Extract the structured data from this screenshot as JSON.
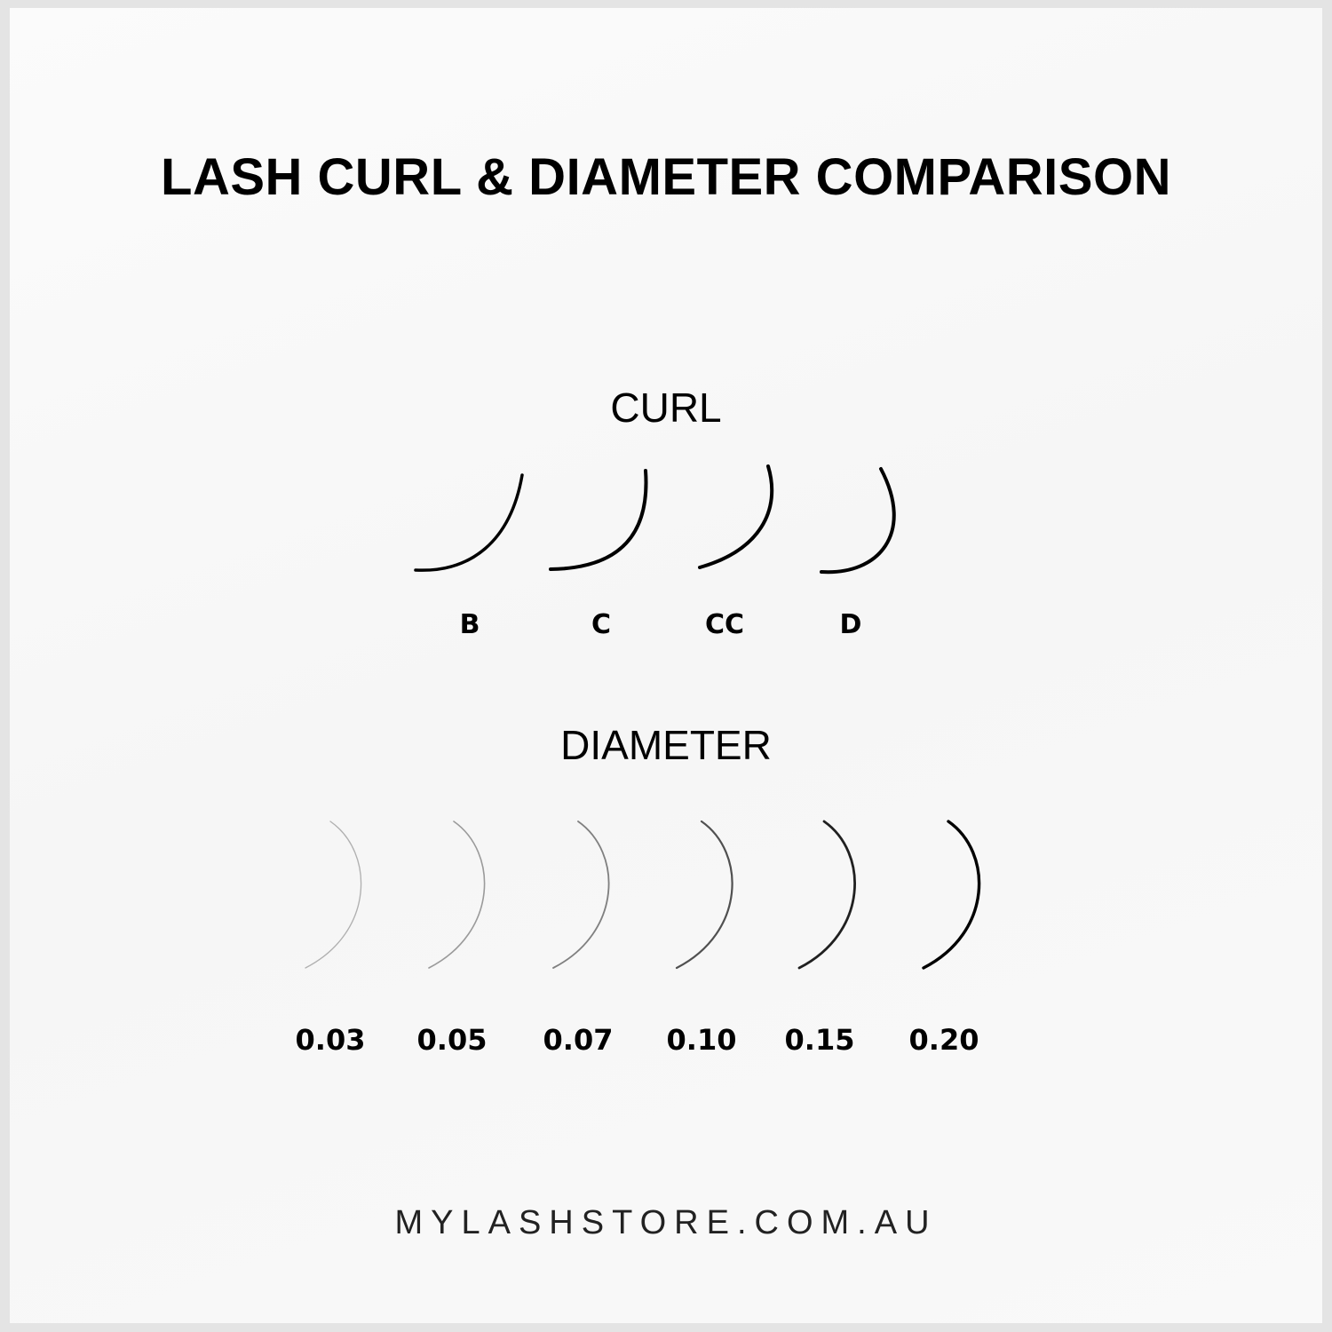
{
  "title": "LASH CURL & DIAMETER COMPARISON",
  "curl": {
    "heading": "CURL",
    "items": [
      {
        "label": "B"
      },
      {
        "label": "C"
      },
      {
        "label": "CC"
      },
      {
        "label": "D"
      }
    ]
  },
  "diameter": {
    "heading": "DIAMETER",
    "items": [
      {
        "label": "0.03",
        "value": 0.03
      },
      {
        "label": "0.05",
        "value": 0.05
      },
      {
        "label": "0.07",
        "value": 0.07
      },
      {
        "label": "0.10",
        "value": 0.1
      },
      {
        "label": "0.15",
        "value": 0.15
      },
      {
        "label": "0.20",
        "value": 0.2
      }
    ]
  },
  "footer": "MYLASHSTORE.COM.AU",
  "colors": {
    "lash": "#000000",
    "border": "#e4e4e4",
    "background": "#f8f8f8"
  }
}
